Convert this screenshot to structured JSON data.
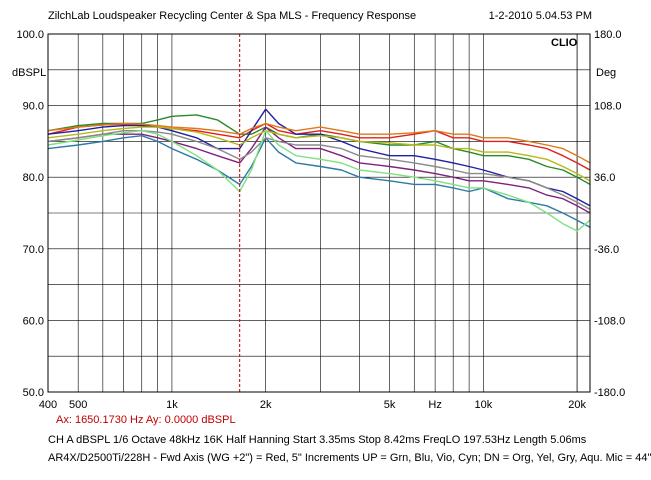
{
  "header": {
    "title": "ZilchLab Loudspeaker Recycling Center & Spa   MLS - Frequency Response",
    "datetime": "1-2-2010 5.04.53 PM"
  },
  "brand": "CLIO",
  "cursor": {
    "readout": "Ax: 1650.1730 Hz   Ay: 0.0000 dBSPL",
    "x_hz": 1650.173
  },
  "status_line": "CH A   dBSPL   1/6 Octave   48kHz   16K   Half Hanning   Start 3.35ms      Stop 8.42ms      FreqLO 197.53Hz     Length 5.06ms",
  "caption": "AR4X/D2500Ti/228H - Fwd Axis (WG +2\") = Red, 5\" Increments UP = Grn, Blu, Vio, Cyn; DN = Org, Yel, Gry, Aqu. Mic = 44\"",
  "colors": {
    "grid": "#000000",
    "cursor": "#c00000",
    "red": "#e02020",
    "green": "#2a8a2a",
    "blue": "#2020a0",
    "violet": "#802080",
    "cyan": "#2c7aa6",
    "orange": "#e07818",
    "yellow": "#b8b818",
    "gray": "#8a8a8a",
    "aqua": "#80e080"
  },
  "chart_data": {
    "type": "line",
    "title": "MLS - Frequency Response",
    "xlabel": "Hz",
    "ylabel": "dBSPL",
    "y2label": "Deg",
    "xscale": "log",
    "xlim": [
      400,
      22000
    ],
    "ylim": [
      50,
      100
    ],
    "y2lim": [
      -180,
      180
    ],
    "grid": true,
    "x_ticks": [
      {
        "value": 400,
        "label": "400"
      },
      {
        "value": 500,
        "label": "500"
      },
      {
        "value": 1000,
        "label": "1k"
      },
      {
        "value": 2000,
        "label": "2k"
      },
      {
        "value": 5000,
        "label": "5k"
      },
      {
        "value": 7000,
        "label": "Hz"
      },
      {
        "value": 10000,
        "label": "10k"
      },
      {
        "value": 20000,
        "label": "20k"
      }
    ],
    "y_ticks": [
      {
        "value": 100,
        "label": "100.0"
      },
      {
        "value": 90,
        "label": "90.0"
      },
      {
        "value": 80,
        "label": "80.0"
      },
      {
        "value": 70,
        "label": "70.0"
      },
      {
        "value": 60,
        "label": "60.0"
      },
      {
        "value": 50,
        "label": "50.0"
      }
    ],
    "y2_ticks": [
      {
        "value": 180,
        "label": "180.0"
      },
      {
        "value": 108,
        "label": "108.0"
      },
      {
        "value": 36,
        "label": "36.0"
      },
      {
        "value": -36,
        "label": "-36.0"
      },
      {
        "value": -108,
        "label": "-108.0"
      },
      {
        "value": -180,
        "label": "-180.0"
      }
    ],
    "x": [
      400,
      500,
      600,
      700,
      800,
      900,
      1000,
      1200,
      1400,
      1650,
      1800,
      2000,
      2200,
      2500,
      3000,
      3500,
      4000,
      5000,
      6000,
      7000,
      8000,
      9000,
      10000,
      12000,
      14000,
      16000,
      18000,
      20000,
      22000
    ],
    "series": [
      {
        "color": "red",
        "values": [
          86,
          87,
          87.3,
          87.4,
          87.2,
          87,
          86.8,
          86.5,
          86,
          85.5,
          86.5,
          87.5,
          86.5,
          86,
          86.5,
          86,
          85.5,
          85.5,
          86,
          86.5,
          85.5,
          85.5,
          85,
          85,
          84.5,
          84,
          83,
          82,
          81
        ]
      },
      {
        "color": "green",
        "values": [
          86.5,
          87.2,
          87.5,
          87.5,
          87.5,
          88,
          88.5,
          88.7,
          88,
          86,
          86,
          87,
          86,
          85.5,
          86,
          85.5,
          85,
          84.5,
          84.5,
          85,
          84,
          83.5,
          83,
          83,
          82.5,
          81.5,
          81,
          80,
          79
        ]
      },
      {
        "color": "blue",
        "values": [
          86,
          86.5,
          87,
          87.2,
          87.2,
          87,
          86.5,
          85.5,
          84,
          84,
          86.5,
          89.5,
          87.5,
          86,
          86,
          85,
          84,
          83,
          83,
          82.5,
          82,
          81.5,
          81,
          80,
          79.5,
          78.5,
          78,
          77,
          76
        ]
      },
      {
        "color": "violet",
        "values": [
          85,
          85.5,
          86,
          86,
          86,
          85.5,
          85,
          84,
          83,
          82,
          84,
          87,
          85.5,
          84,
          84,
          83,
          82,
          81.5,
          81,
          80.5,
          80,
          79.5,
          79.5,
          79,
          78.5,
          77.5,
          77,
          76,
          75
        ]
      },
      {
        "color": "cyan",
        "values": [
          84,
          84.5,
          85,
          85.5,
          85.8,
          85,
          84,
          82.5,
          81,
          79,
          81.5,
          85.5,
          83.5,
          82,
          81.5,
          81,
          80,
          79.5,
          79,
          79,
          78.5,
          78,
          78.5,
          77,
          76.5,
          76,
          75,
          74,
          73
        ]
      },
      {
        "color": "orange",
        "values": [
          86.5,
          87,
          87.3,
          87.5,
          87.4,
          87.2,
          87,
          86.8,
          86.5,
          86,
          86.8,
          87.5,
          87,
          86.5,
          87,
          86.5,
          86,
          86,
          86.2,
          86.5,
          86,
          86,
          85.5,
          85.5,
          85,
          84.5,
          84,
          83,
          82
        ]
      },
      {
        "color": "yellow",
        "values": [
          85.5,
          86,
          86.5,
          86.8,
          87,
          87,
          86.8,
          86.3,
          85.5,
          84.5,
          85.5,
          86.5,
          86,
          85.5,
          85.8,
          85.5,
          85,
          84.8,
          84.5,
          84.5,
          84,
          84,
          83.5,
          83.5,
          83,
          82.5,
          81.5,
          80.5,
          79.5
        ]
      },
      {
        "color": "gray",
        "values": [
          85,
          85.5,
          86,
          86.5,
          86.5,
          86.3,
          86,
          85,
          84,
          82.5,
          83.5,
          85.5,
          85,
          84.5,
          84.5,
          84,
          83,
          82.5,
          82,
          81.5,
          81,
          80.5,
          80.5,
          80,
          79.5,
          78.5,
          77.5,
          76.5,
          75.5
        ]
      },
      {
        "color": "aqua",
        "values": [
          84.5,
          85.2,
          85.8,
          86.2,
          86.5,
          86,
          85,
          83,
          81,
          78,
          81,
          86.5,
          84.5,
          83,
          82.5,
          82,
          81,
          80.5,
          80,
          79.5,
          79,
          78.5,
          78.5,
          77.5,
          76.5,
          75,
          73.5,
          72.5,
          74
        ]
      }
    ]
  }
}
